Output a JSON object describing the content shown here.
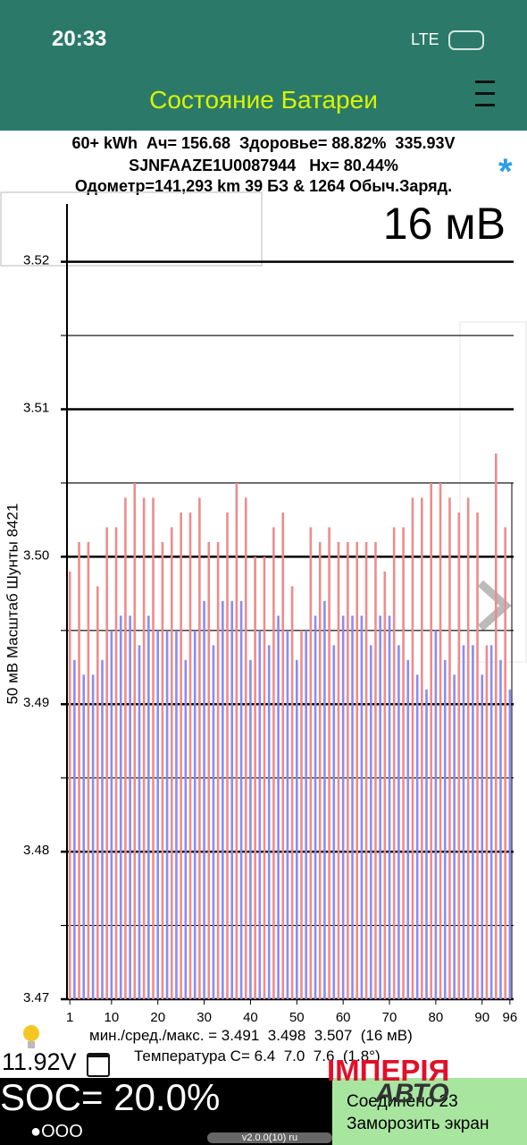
{
  "status_bar": {
    "time": "20:33",
    "network": "LTE"
  },
  "header": {
    "title": "Состояние Батареи"
  },
  "info": {
    "line1": "60+ kWh  Ач= 156.68  Здоровье= 88.82%  335.93V",
    "line2": "SJNFAAZE1U0087944   Hx= 80.44%",
    "line3": "Одометр=141,293 km 39 БЗ & 1264 Обыч.Заряд.",
    "star": "*"
  },
  "spread": "16 мВ",
  "chart_data": {
    "type": "bar",
    "y_label": "50 мВ Масштаб   Шунты 8421",
    "values": [
      3.499,
      3.493,
      3.501,
      3.492,
      3.501,
      3.492,
      3.498,
      3.493,
      3.502,
      3.495,
      3.502,
      3.496,
      3.504,
      3.496,
      3.505,
      3.494,
      3.504,
      3.496,
      3.504,
      3.495,
      3.501,
      3.495,
      3.502,
      3.495,
      3.503,
      3.493,
      3.503,
      3.495,
      3.504,
      3.497,
      3.501,
      3.494,
      3.501,
      3.497,
      3.503,
      3.497,
      3.505,
      3.497,
      3.504,
      3.493,
      3.5,
      3.495,
      3.5,
      3.494,
      3.502,
      3.496,
      3.503,
      3.495,
      3.498,
      3.493,
      3.495,
      3.495,
      3.502,
      3.496,
      3.501,
      3.497,
      3.502,
      3.494,
      3.501,
      3.496,
      3.501,
      3.496,
      3.501,
      3.496,
      3.501,
      3.494,
      3.501,
      3.496,
      3.499,
      3.496,
      3.502,
      3.494,
      3.502,
      3.493,
      3.504,
      3.492,
      3.504,
      3.491,
      3.505,
      3.495,
      3.505,
      3.493,
      3.504,
      3.492,
      3.503,
      3.494,
      3.504,
      3.494,
      3.503,
      3.492,
      3.494,
      3.494,
      3.507,
      3.493,
      3.502,
      3.491
    ],
    "bar_colors": [
      "#ee8c8c",
      "#8c8cee"
    ],
    "xlim": [
      0,
      96.8
    ],
    "xticks": [
      1,
      10,
      20,
      30,
      40,
      50,
      60,
      70,
      80,
      90,
      96
    ],
    "ylim": [
      3.47,
      3.5238
    ],
    "yticks": [
      3.47,
      3.48,
      3.49,
      {
        "value": 3.5,
        "label": "3.50"
      },
      3.51,
      3.52
    ],
    "minor_yticks": [
      3.475,
      3.485,
      3.495,
      3.505,
      3.515
    ],
    "grid": true
  },
  "footer": {
    "stats": "мин./сред./макс. = 3.491  3.498  3.507  (16 мВ)",
    "voltage": "11.92V",
    "temperature": "Температура С= 6.4  7.0  7.6  (1.8°)",
    "soc": "SOC= 20.0%",
    "pages": "●OOO",
    "version": "v2.0.0(10) ru",
    "connected": "Соединено 23",
    "freeze": "Заморозить экран",
    "watermark_top": "ІМПЕРІЯ",
    "watermark_bottom": "АВТО"
  }
}
